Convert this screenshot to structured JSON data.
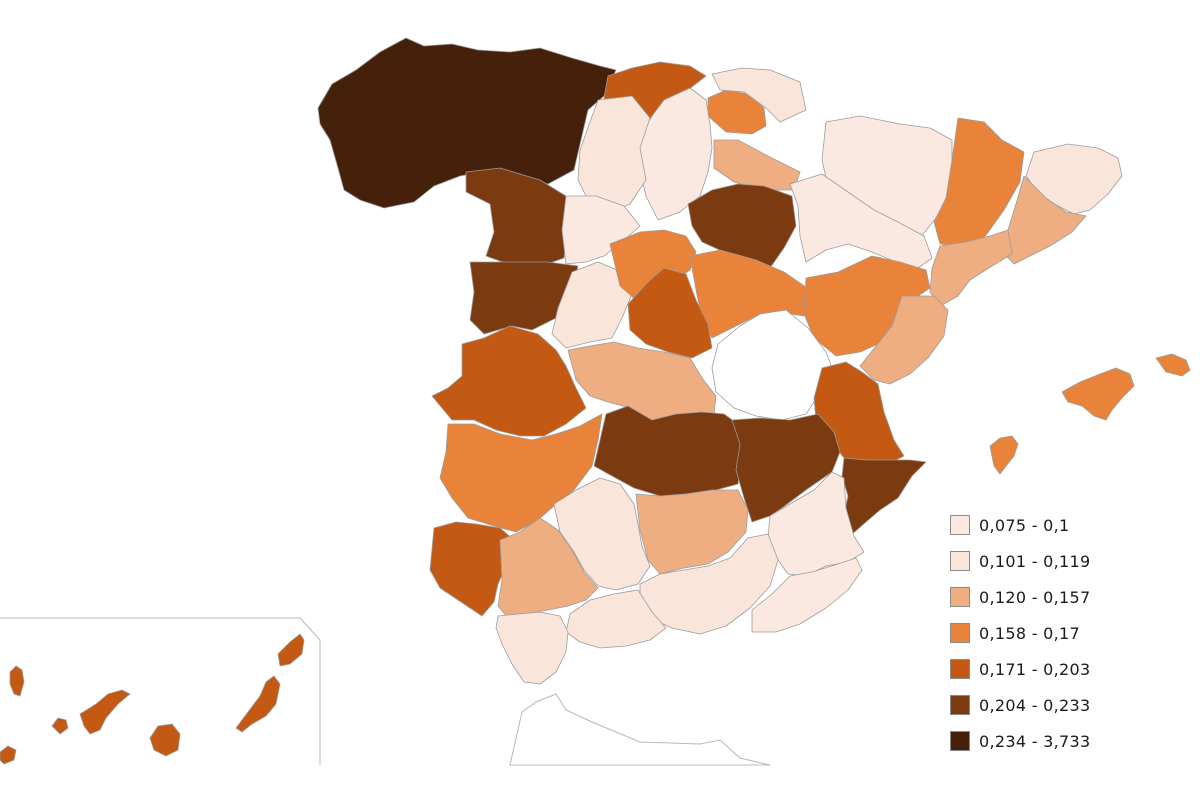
{
  "legend": {
    "items": [
      {
        "label": "0,075 - 0,1",
        "color": "#fbe9e1"
      },
      {
        "label": "0,101 - 0,119",
        "color": "#f9e5d9"
      },
      {
        "label": "0,120 - 0,157",
        "color": "#eeae82"
      },
      {
        "label": "0,158 - 0,17",
        "color": "#e9833a"
      },
      {
        "label": "0,171 - 0,203",
        "color": "#c45913"
      },
      {
        "label": "0,204 - 0,233",
        "color": "#7b3a0f"
      },
      {
        "label": "0,234 - 3,733",
        "color": "#45200a"
      }
    ]
  },
  "map": {
    "border_color": "#9c9c9c",
    "unshaded_color": "#ffffff",
    "regions": [
      {
        "name": "galicia-asturias-leon-north",
        "class": 6
      },
      {
        "name": "cantabria-east",
        "class": 4
      },
      {
        "name": "basque-country",
        "class": 3
      },
      {
        "name": "navarra",
        "class": 1
      },
      {
        "name": "burgos",
        "class": 0
      },
      {
        "name": "palencia",
        "class": 1
      },
      {
        "name": "la-rioja",
        "class": 2
      },
      {
        "name": "huesca",
        "class": 0
      },
      {
        "name": "lleida",
        "class": 3
      },
      {
        "name": "girona",
        "class": 1
      },
      {
        "name": "barcelona",
        "class": 2
      },
      {
        "name": "zamora",
        "class": 5
      },
      {
        "name": "salamanca",
        "class": 5
      },
      {
        "name": "valladolid",
        "class": 0
      },
      {
        "name": "soria",
        "class": 5
      },
      {
        "name": "zaragoza",
        "class": 0
      },
      {
        "name": "tarragona",
        "class": 2
      },
      {
        "name": "avila",
        "class": 1
      },
      {
        "name": "segovia",
        "class": 3
      },
      {
        "name": "guadalajara",
        "class": 3
      },
      {
        "name": "teruel",
        "class": 3
      },
      {
        "name": "castellon",
        "class": 2
      },
      {
        "name": "madrid",
        "class": 4
      },
      {
        "name": "cuenca",
        "class": -1
      },
      {
        "name": "valencia",
        "class": 4
      },
      {
        "name": "caceres",
        "class": 4
      },
      {
        "name": "toledo",
        "class": 2
      },
      {
        "name": "badajoz",
        "class": 3
      },
      {
        "name": "ciudad-real",
        "class": 5
      },
      {
        "name": "albacete",
        "class": 5
      },
      {
        "name": "alicante",
        "class": 5
      },
      {
        "name": "murcia",
        "class": 0
      },
      {
        "name": "cordoba",
        "class": 1
      },
      {
        "name": "jaen",
        "class": 2
      },
      {
        "name": "huelva",
        "class": 4
      },
      {
        "name": "sevilla",
        "class": 2
      },
      {
        "name": "granada",
        "class": 1
      },
      {
        "name": "almeria",
        "class": 0
      },
      {
        "name": "malaga",
        "class": 1
      },
      {
        "name": "cadiz",
        "class": 1
      },
      {
        "name": "mallorca",
        "class": 3
      },
      {
        "name": "menorca",
        "class": 3
      },
      {
        "name": "ibiza",
        "class": 3
      },
      {
        "name": "lanzarote",
        "class": 4
      },
      {
        "name": "fuerteventura",
        "class": 4
      },
      {
        "name": "gran-canaria",
        "class": 4
      },
      {
        "name": "tenerife",
        "class": 4
      },
      {
        "name": "la-gomera",
        "class": 4
      },
      {
        "name": "la-palma",
        "class": 4
      },
      {
        "name": "el-hierro",
        "class": 4
      }
    ]
  }
}
